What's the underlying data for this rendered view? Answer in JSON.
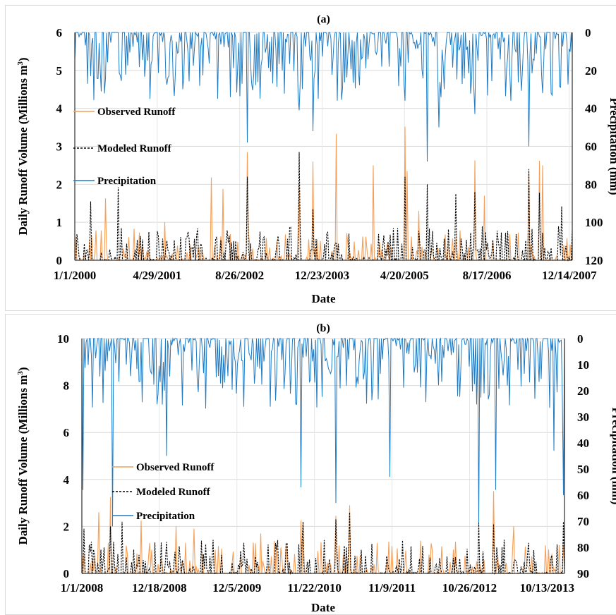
{
  "chart_data": [
    {
      "id": "a",
      "type": "line",
      "title": "(a)",
      "xlabel": "Date",
      "ylabel": "Daily Runoff Volume (Millions m³)",
      "ylabel_main": "Daily Runoff Volume (Millions m",
      "ylabel_sup": "3",
      "ylabel_close": ")",
      "y2label": "Precipitation (mm)",
      "x_tick_labels": [
        "1/1/2000",
        "4/29/2001",
        "8/26/2002",
        "12/23/2003",
        "4/20/2005",
        "8/17/2006",
        "12/14/2007"
      ],
      "x_range": [
        "1/1/2000",
        "12/31/2007"
      ],
      "ylim": [
        0,
        6
      ],
      "y_ticks": [
        0,
        1,
        2,
        3,
        4,
        5,
        6
      ],
      "y2lim_inverted": [
        0,
        120
      ],
      "y2_ticks": [
        0,
        20,
        40,
        60,
        80,
        100,
        120
      ],
      "grid": true,
      "legend_position": "left-middle",
      "series": [
        {
          "name": "Observed Runoff",
          "color": "#f4a05a",
          "style": "solid",
          "axis": "left",
          "peaks": [
            {
              "x": "7/1/2000",
              "y": 1.63
            },
            {
              "x": "6/15/2001",
              "y": 1.0
            },
            {
              "x": "3/10/2002",
              "y": 2.18
            },
            {
              "x": "5/20/2002",
              "y": 1.88
            },
            {
              "x": "10/10/2002",
              "y": 2.85
            },
            {
              "x": "8/10/2003",
              "y": 2.0
            },
            {
              "x": "11/1/2003",
              "y": 2.6
            },
            {
              "x": "3/15/2004",
              "y": 3.33
            },
            {
              "x": "10/20/2004",
              "y": 2.5
            },
            {
              "x": "4/20/2005",
              "y": 3.52
            },
            {
              "x": "5/5/2005",
              "y": 2.35
            },
            {
              "x": "7/15/2005",
              "y": 1.3
            },
            {
              "x": "6/10/2006",
              "y": 2.63
            },
            {
              "x": "8/5/2006",
              "y": 1.7
            },
            {
              "x": "4/20/2007",
              "y": 2.3
            },
            {
              "x": "6/20/2007",
              "y": 2.62
            },
            {
              "x": "7/10/2007",
              "y": 2.5
            }
          ]
        },
        {
          "name": "Modeled Runoff",
          "color": "#000000",
          "style": "dashed",
          "axis": "left",
          "peaks": [
            {
              "x": "4/1/2000",
              "y": 1.55
            },
            {
              "x": "9/10/2000",
              "y": 1.92
            },
            {
              "x": "10/10/2002",
              "y": 2.2
            },
            {
              "x": "8/10/2003",
              "y": 2.85
            },
            {
              "x": "11/1/2003",
              "y": 1.35
            },
            {
              "x": "4/20/2005",
              "y": 2.2
            },
            {
              "x": "9/1/2005",
              "y": 2.0
            },
            {
              "x": "2/15/2006",
              "y": 1.75
            },
            {
              "x": "6/10/2006",
              "y": 1.8
            },
            {
              "x": "4/20/2007",
              "y": 2.4
            },
            {
              "x": "6/20/2007",
              "y": 1.78
            },
            {
              "x": "11/1/2007",
              "y": 1.42
            }
          ]
        },
        {
          "name": "Precipitation",
          "color": "#1f7bc4",
          "style": "solid",
          "axis": "right",
          "peaks": [
            {
              "x": "4/1/2000",
              "y": 23
            },
            {
              "x": "3/15/2001",
              "y": 35
            },
            {
              "x": "10/10/2002",
              "y": 58
            },
            {
              "x": "8/10/2003",
              "y": 41
            },
            {
              "x": "11/1/2003",
              "y": 52
            },
            {
              "x": "4/20/2005",
              "y": 36
            },
            {
              "x": "9/1/2005",
              "y": 68
            },
            {
              "x": "11/10/2005",
              "y": 50
            },
            {
              "x": "6/10/2006",
              "y": 43
            },
            {
              "x": "4/20/2007",
              "y": 60
            },
            {
              "x": "7/10/2007",
              "y": 32
            }
          ]
        }
      ]
    },
    {
      "id": "b",
      "type": "line",
      "title": "(b)",
      "xlabel": "Date",
      "ylabel": "Daily Runoff Volume (Millions m³)",
      "ylabel_main": "Daily Runoff Volume (Millions m",
      "ylabel_sup": "3",
      "ylabel_close": ")",
      "y2label": "Precipitation (mm)",
      "x_tick_labels": [
        "1/1/2008",
        "12/18/2008",
        "12/5/2009",
        "11/22/2010",
        "11/9/2011",
        "10/26/2012",
        "10/13/2013"
      ],
      "x_range": [
        "1/1/2008",
        "12/31/2013"
      ],
      "ylim": [
        0,
        10
      ],
      "y_ticks": [
        0,
        2,
        4,
        6,
        8,
        10
      ],
      "y2lim_inverted": [
        0,
        90
      ],
      "y2_ticks": [
        0,
        10,
        20,
        30,
        40,
        50,
        60,
        70,
        80,
        90
      ],
      "grid": true,
      "legend_position": "left-middle",
      "series": [
        {
          "name": "Observed Runoff",
          "color": "#f4a05a",
          "style": "solid",
          "axis": "left",
          "peaks": [
            {
              "x": "3/20/2008",
              "y": 2.6
            },
            {
              "x": "5/10/2008",
              "y": 3.25
            },
            {
              "x": "9/25/2008",
              "y": 2.25
            },
            {
              "x": "3/5/2009",
              "y": 2.0
            },
            {
              "x": "5/25/2009",
              "y": 1.9
            },
            {
              "x": "3/25/2010",
              "y": 1.7
            },
            {
              "x": "9/20/2010",
              "y": 2.25
            },
            {
              "x": "10/1/2010",
              "y": 2.15
            },
            {
              "x": "3/1/2011",
              "y": 2.45
            },
            {
              "x": "5/1/2011",
              "y": 2.9
            },
            {
              "x": "10/25/2011",
              "y": 1.35
            },
            {
              "x": "2/10/2013",
              "y": 3.5
            },
            {
              "x": "5/15/2013",
              "y": 2.0
            },
            {
              "x": "12/25/2013",
              "y": 1.2
            }
          ]
        },
        {
          "name": "Modeled Runoff",
          "color": "#000000",
          "style": "dashed",
          "axis": "left",
          "peaks": [
            {
              "x": "1/10/2008",
              "y": 1.9
            },
            {
              "x": "5/10/2008",
              "y": 2.0
            },
            {
              "x": "7/1/2008",
              "y": 2.2
            },
            {
              "x": "10/1/2010",
              "y": 2.2
            },
            {
              "x": "3/1/2011",
              "y": 2.3
            },
            {
              "x": "5/1/2011",
              "y": 2.6
            },
            {
              "x": "12/5/2012",
              "y": 2.15
            },
            {
              "x": "2/10/2013",
              "y": 2.1
            },
            {
              "x": "12/28/2013",
              "y": 2.2
            }
          ]
        },
        {
          "name": "Precipitation",
          "color": "#1f7bc4",
          "style": "solid",
          "axis": "right",
          "peaks": [
            {
              "x": "1/5/2008",
              "y": 58
            },
            {
              "x": "5/20/2008",
              "y": 72
            },
            {
              "x": "1/20/2009",
              "y": 45
            },
            {
              "x": "9/20/2010",
              "y": 57
            },
            {
              "x": "3/1/2011",
              "y": 63
            },
            {
              "x": "11/1/2011",
              "y": 53
            },
            {
              "x": "12/5/2012",
              "y": 72
            },
            {
              "x": "2/20/2013",
              "y": 58
            },
            {
              "x": "11/15/2013",
              "y": 43
            },
            {
              "x": "12/28/2013",
              "y": 60
            }
          ]
        }
      ]
    }
  ]
}
